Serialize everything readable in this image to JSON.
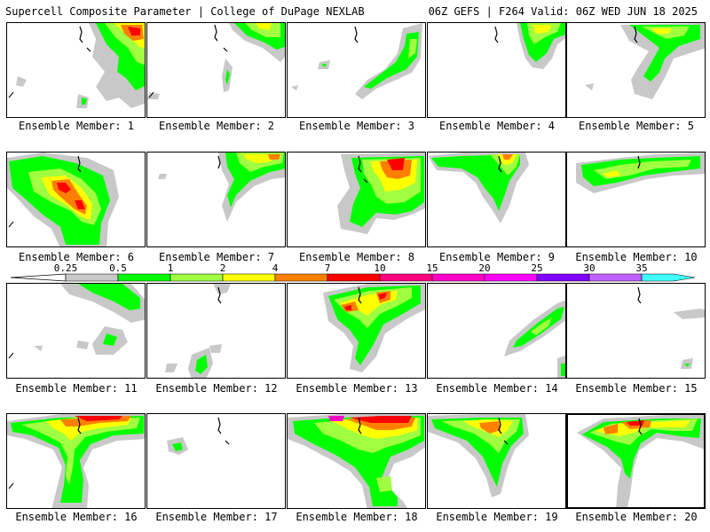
{
  "header": {
    "left": "Supercell Composite Parameter | College of DuPage NEXLAB",
    "right": "06Z GEFS | F264 Valid: 06Z WED JUN 18 2025"
  },
  "colorbar": {
    "ticks": [
      "0.25",
      "0.5",
      "1",
      "2",
      "4",
      "7",
      "10",
      "15",
      "20",
      "25",
      "30",
      "35"
    ],
    "colors": [
      "#c8c8c8",
      "#00ff00",
      "#a0ff40",
      "#ffff00",
      "#ff8000",
      "#ff0000",
      "#ff0080",
      "#ff00c8",
      "#ff00ff",
      "#8000ff",
      "#c060ff",
      "#40ffff"
    ]
  },
  "members": [
    {
      "label": "Ensemble Member: 1"
    },
    {
      "label": "Ensemble Member: 2"
    },
    {
      "label": "Ensemble Member: 3"
    },
    {
      "label": "Ensemble Member: 4"
    },
    {
      "label": "Ensemble Member: 5"
    },
    {
      "label": "Ensemble Member: 6"
    },
    {
      "label": "Ensemble Member: 7"
    },
    {
      "label": "Ensemble Member: 8"
    },
    {
      "label": "Ensemble Member: 9"
    },
    {
      "label": "Ensemble Member: 10"
    },
    {
      "label": "Ensemble Member: 11"
    },
    {
      "label": "Ensemble Member: 12"
    },
    {
      "label": "Ensemble Member: 13"
    },
    {
      "label": "Ensemble Member: 14"
    },
    {
      "label": "Ensemble Member: 15"
    },
    {
      "label": "Ensemble Member: 16"
    },
    {
      "label": "Ensemble Member: 17"
    },
    {
      "label": "Ensemble Member: 18"
    },
    {
      "label": "Ensemble Member: 19"
    },
    {
      "label": "Ensemble Member: 20"
    }
  ]
}
